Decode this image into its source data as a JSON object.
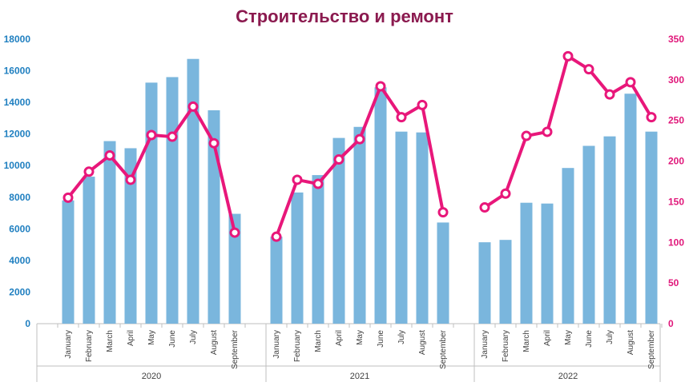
{
  "chart_data": {
    "type": "bar",
    "title": "Строительство и ремонт",
    "colors": {
      "title": "#8b1a4f",
      "bars": "#7ab6dd",
      "line": "#e8177a",
      "left_axis": "#1f7fc0",
      "right_axis": "#e0177a",
      "axis_line": "#bfbfbf"
    },
    "groups": [
      {
        "year": "2020",
        "categories": [
          "January",
          "February",
          "March",
          "April",
          "May",
          "June",
          "July",
          "August",
          "September"
        ],
        "bar_values": [
          7800,
          9300,
          11550,
          11100,
          15250,
          15600,
          16750,
          13500,
          6950
        ],
        "line_values": [
          155,
          187,
          207,
          177,
          232,
          230,
          267,
          222,
          112
        ]
      },
      {
        "year": "2021",
        "categories": [
          "January",
          "February",
          "March",
          "April",
          "May",
          "June",
          "July",
          "August",
          "September"
        ],
        "bar_values": [
          5500,
          8300,
          9400,
          11750,
          12450,
          14950,
          12150,
          12100,
          6400
        ],
        "line_values": [
          107,
          177,
          172,
          202,
          227,
          292,
          254,
          269,
          137
        ]
      },
      {
        "year": "2022",
        "categories": [
          "January",
          "February",
          "March",
          "April",
          "May",
          "June",
          "July",
          "August",
          "September"
        ],
        "bar_values": [
          5150,
          5300,
          7650,
          7600,
          9850,
          11250,
          11850,
          14550,
          12150
        ],
        "line_values": [
          143,
          160,
          231,
          236,
          329,
          313,
          282,
          297,
          254
        ]
      }
    ],
    "series": [
      {
        "name": "bars",
        "axis": "left",
        "type": "bar"
      },
      {
        "name": "line",
        "axis": "right",
        "type": "line"
      }
    ],
    "y_left": {
      "min": 0,
      "max": 18000,
      "ticks": [
        "0",
        "2000",
        "4000",
        "6000",
        "8000",
        "10000",
        "12000",
        "14000",
        "16000",
        "18000"
      ]
    },
    "y_right": {
      "min": 0,
      "max": 350,
      "ticks": [
        "0",
        "50",
        "100",
        "150",
        "200",
        "250",
        "300",
        "350"
      ]
    },
    "grid": false,
    "legend": "none"
  }
}
